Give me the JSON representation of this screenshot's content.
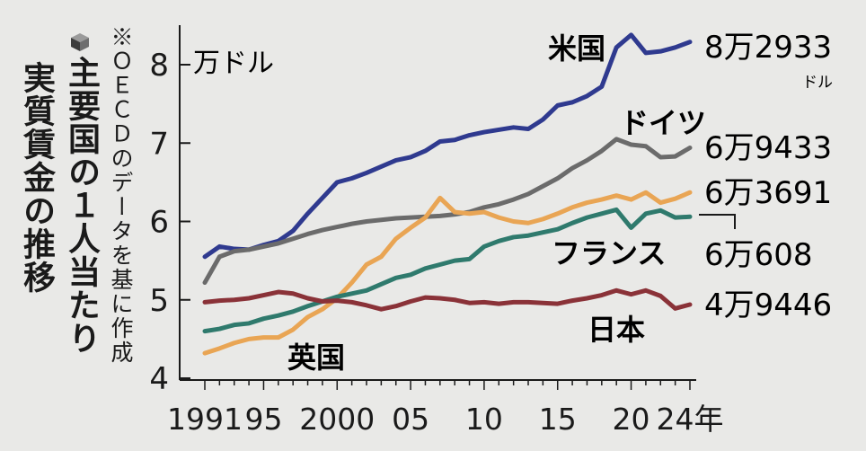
{
  "title_lines": [
    "主要国の１人当たり",
    "実質賃金の推移"
  ],
  "note": "※ＯＥＣＤのデータを基に作成",
  "unit_label": "万ドル",
  "end_unit": "ドル",
  "chart_data": {
    "type": "line",
    "title": "主要国の１人当たり実質賃金の推移",
    "ylabel": "万ドル",
    "ylim": [
      4,
      8.5
    ],
    "yticks": [
      "4",
      "5",
      "6",
      "7",
      "8"
    ],
    "xticks": [
      "1991",
      "95",
      "2000",
      "05",
      "10",
      "15",
      "20",
      "24年"
    ],
    "x": [
      1991,
      1992,
      1993,
      1994,
      1995,
      1996,
      1997,
      1998,
      1999,
      2000,
      2001,
      2002,
      2003,
      2004,
      2005,
      2006,
      2007,
      2008,
      2009,
      2010,
      2011,
      2012,
      2013,
      2014,
      2015,
      2016,
      2017,
      2018,
      2019,
      2020,
      2021,
      2022,
      2023,
      2024
    ],
    "series": [
      {
        "name": "米国",
        "end_value": "8万2933",
        "color": "#2f3a8f",
        "values": [
          5.55,
          5.68,
          5.65,
          5.64,
          5.7,
          5.75,
          5.88,
          6.1,
          6.3,
          6.5,
          6.55,
          6.62,
          6.7,
          6.78,
          6.82,
          6.9,
          7.02,
          7.04,
          7.1,
          7.14,
          7.17,
          7.2,
          7.18,
          7.3,
          7.48,
          7.52,
          7.6,
          7.72,
          8.22,
          8.38,
          8.15,
          8.17,
          8.22,
          8.29
        ]
      },
      {
        "name": "ドイツ",
        "end_value": "6万9433",
        "color": "#6b6b6b",
        "values": [
          5.22,
          5.55,
          5.62,
          5.64,
          5.68,
          5.72,
          5.78,
          5.84,
          5.89,
          5.93,
          5.97,
          6.0,
          6.02,
          6.04,
          6.05,
          6.06,
          6.07,
          6.09,
          6.12,
          6.18,
          6.22,
          6.28,
          6.35,
          6.45,
          6.55,
          6.68,
          6.78,
          6.9,
          7.05,
          6.98,
          6.96,
          6.82,
          6.83,
          6.94
        ]
      },
      {
        "name": "英国",
        "end_value": "6万3691",
        "color": "#e9a554",
        "values": [
          4.32,
          4.38,
          4.45,
          4.5,
          4.52,
          4.52,
          4.62,
          4.78,
          4.88,
          5.02,
          5.22,
          5.45,
          5.55,
          5.78,
          5.92,
          6.05,
          6.3,
          6.12,
          6.1,
          6.12,
          6.05,
          6.0,
          5.98,
          6.03,
          6.1,
          6.18,
          6.24,
          6.28,
          6.33,
          6.28,
          6.37,
          6.24,
          6.29,
          6.37
        ]
      },
      {
        "name": "フランス",
        "end_value": "6万608",
        "color": "#2f7a6d",
        "values": [
          4.6,
          4.63,
          4.68,
          4.7,
          4.76,
          4.8,
          4.85,
          4.92,
          4.98,
          5.04,
          5.08,
          5.12,
          5.2,
          5.28,
          5.32,
          5.4,
          5.45,
          5.5,
          5.52,
          5.68,
          5.75,
          5.8,
          5.82,
          5.86,
          5.9,
          5.98,
          6.05,
          6.1,
          6.15,
          5.92,
          6.1,
          6.14,
          6.05,
          6.06
        ]
      },
      {
        "name": "日本",
        "end_value": "4万9446",
        "color": "#8a3238",
        "values": [
          4.97,
          4.99,
          5.0,
          5.02,
          5.06,
          5.1,
          5.08,
          5.02,
          4.98,
          4.99,
          4.97,
          4.93,
          4.88,
          4.92,
          4.98,
          5.03,
          5.02,
          5.0,
          4.96,
          4.97,
          4.95,
          4.97,
          4.97,
          4.96,
          4.95,
          4.99,
          5.02,
          5.06,
          5.12,
          5.07,
          5.12,
          5.05,
          4.89,
          4.94
        ]
      }
    ]
  }
}
